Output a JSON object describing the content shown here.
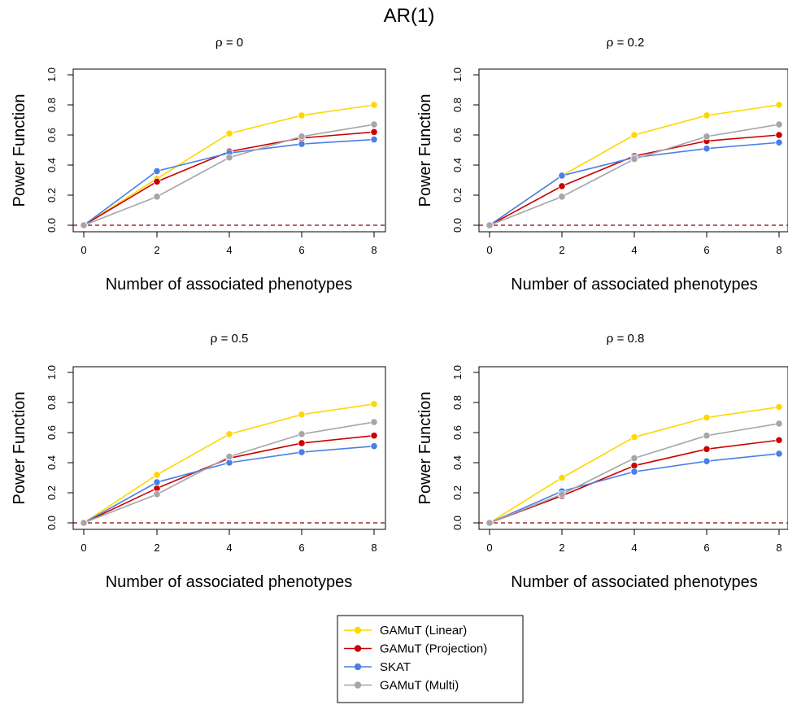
{
  "title": "AR(1)",
  "legend": {
    "placement": "bottom-center",
    "entries": [
      "GAMuT (Linear)",
      "GAMuT (Projection)",
      "SKAT",
      "GAMuT (Multi)"
    ]
  },
  "colors": {
    "GAMuT (Linear)": "#ffd700",
    "GAMuT (Projection)": "#cc0000",
    "SKAT": "#4a7fe6",
    "GAMuT (Multi)": "#a6a6a6",
    "reference_line": "#8b0000"
  },
  "chart_data": [
    {
      "type": "line",
      "subtitle_symbol": "ρ",
      "subtitle_rest": " = 0",
      "xlabel": "Number of associated phenotypes",
      "ylabel": "Power Function",
      "x": [
        0,
        2,
        4,
        6,
        8
      ],
      "xticks": [
        "0",
        "2",
        "4",
        "6",
        "8"
      ],
      "yticks": [
        "0.0",
        "0.2",
        "0.4",
        "0.6",
        "0.8",
        "1.0"
      ],
      "xlim": [
        0,
        8
      ],
      "ylim": [
        0,
        1
      ],
      "reference_line_y": 0,
      "series": [
        {
          "name": "GAMuT (Linear)",
          "values": [
            0.0,
            0.31,
            0.61,
            0.73,
            0.8
          ]
        },
        {
          "name": "GAMuT (Projection)",
          "values": [
            0.0,
            0.29,
            0.49,
            0.58,
            0.62
          ]
        },
        {
          "name": "SKAT",
          "values": [
            0.0,
            0.36,
            0.48,
            0.54,
            0.57
          ]
        },
        {
          "name": "GAMuT (Multi)",
          "values": [
            0.0,
            0.19,
            0.45,
            0.59,
            0.67
          ]
        }
      ]
    },
    {
      "type": "line",
      "subtitle_symbol": "ρ",
      "subtitle_rest": " = 0.2",
      "xlabel": "Number of associated phenotypes",
      "ylabel": "Power Function",
      "x": [
        0,
        2,
        4,
        6,
        8
      ],
      "xticks": [
        "0",
        "2",
        "4",
        "6",
        "8"
      ],
      "yticks": [
        "0.0",
        "0.2",
        "0.4",
        "0.6",
        "0.8",
        "1.0"
      ],
      "xlim": [
        0,
        8
      ],
      "ylim": [
        0,
        1
      ],
      "reference_line_y": 0,
      "series": [
        {
          "name": "GAMuT (Linear)",
          "values": [
            0.0,
            0.33,
            0.6,
            0.73,
            0.8
          ]
        },
        {
          "name": "GAMuT (Projection)",
          "values": [
            0.0,
            0.26,
            0.46,
            0.56,
            0.6
          ]
        },
        {
          "name": "SKAT",
          "values": [
            0.0,
            0.33,
            0.45,
            0.51,
            0.55
          ]
        },
        {
          "name": "GAMuT (Multi)",
          "values": [
            0.0,
            0.19,
            0.44,
            0.59,
            0.67
          ]
        }
      ]
    },
    {
      "type": "line",
      "subtitle_symbol": "ρ",
      "subtitle_rest": " = 0.5",
      "xlabel": "Number of associated phenotypes",
      "ylabel": "Power Function",
      "x": [
        0,
        2,
        4,
        6,
        8
      ],
      "xticks": [
        "0",
        "2",
        "4",
        "6",
        "8"
      ],
      "yticks": [
        "0.0",
        "0.2",
        "0.4",
        "0.6",
        "0.8",
        "1.0"
      ],
      "xlim": [
        0,
        8
      ],
      "ylim": [
        0,
        1
      ],
      "reference_line_y": 0,
      "series": [
        {
          "name": "GAMuT (Linear)",
          "values": [
            0.0,
            0.32,
            0.59,
            0.72,
            0.79
          ]
        },
        {
          "name": "GAMuT (Projection)",
          "values": [
            0.0,
            0.23,
            0.43,
            0.53,
            0.58
          ]
        },
        {
          "name": "SKAT",
          "values": [
            0.0,
            0.27,
            0.4,
            0.47,
            0.51
          ]
        },
        {
          "name": "GAMuT (Multi)",
          "values": [
            0.0,
            0.19,
            0.44,
            0.59,
            0.67
          ]
        }
      ]
    },
    {
      "type": "line",
      "subtitle_symbol": "ρ",
      "subtitle_rest": " = 0.8",
      "xlabel": "Number of associated phenotypes",
      "ylabel": "Power Function",
      "x": [
        0,
        2,
        4,
        6,
        8
      ],
      "xticks": [
        "0",
        "2",
        "4",
        "6",
        "8"
      ],
      "yticks": [
        "0.0",
        "0.2",
        "0.4",
        "0.6",
        "0.8",
        "1.0"
      ],
      "xlim": [
        0,
        8
      ],
      "ylim": [
        0,
        1
      ],
      "reference_line_y": 0,
      "series": [
        {
          "name": "GAMuT (Linear)",
          "values": [
            0.0,
            0.3,
            0.57,
            0.7,
            0.77
          ]
        },
        {
          "name": "GAMuT (Projection)",
          "values": [
            0.0,
            0.18,
            0.38,
            0.49,
            0.55
          ]
        },
        {
          "name": "SKAT",
          "values": [
            0.0,
            0.21,
            0.34,
            0.41,
            0.46
          ]
        },
        {
          "name": "GAMuT (Multi)",
          "values": [
            0.0,
            0.19,
            0.43,
            0.58,
            0.66
          ]
        }
      ]
    }
  ]
}
